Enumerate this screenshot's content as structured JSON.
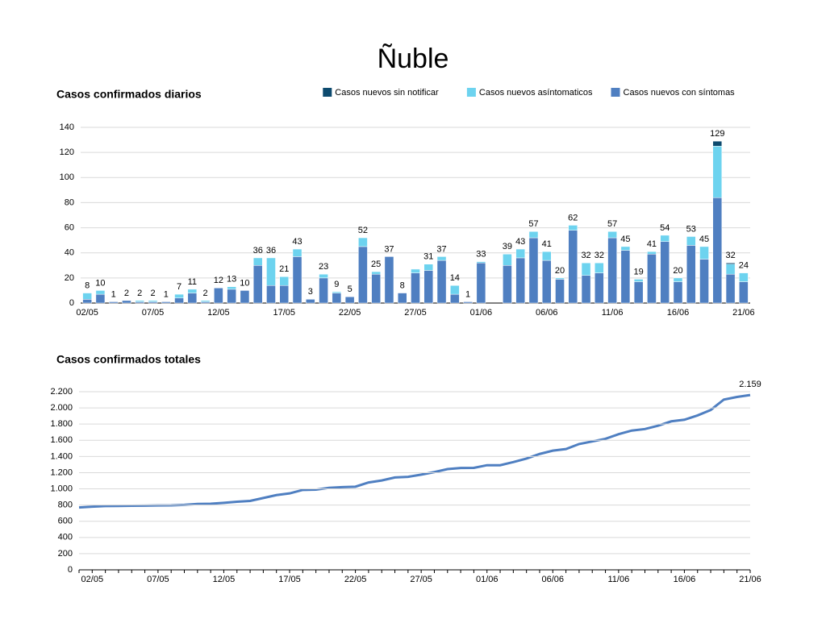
{
  "title": "Ñuble",
  "chart_data": [
    {
      "type": "stacked_bar",
      "title": "Casos confirmados diarios",
      "categories": [
        "02/05",
        null,
        null,
        null,
        null,
        "07/05",
        null,
        null,
        null,
        null,
        "12/05",
        null,
        null,
        null,
        null,
        "17/05",
        null,
        null,
        null,
        null,
        "22/05",
        null,
        null,
        null,
        null,
        "27/05",
        null,
        null,
        null,
        null,
        "01/06",
        null,
        null,
        null,
        null,
        "06/06",
        null,
        null,
        null,
        null,
        "11/06",
        null,
        null,
        null,
        null,
        "16/06",
        null,
        null,
        null,
        null,
        "21/06"
      ],
      "series": [
        {
          "name": "Casos nuevos con síntomas",
          "color": "#4f7fc1",
          "values": [
            3,
            7,
            1,
            2,
            1,
            1,
            1,
            4,
            8,
            1,
            12,
            11,
            10,
            30,
            14,
            14,
            37,
            3,
            20,
            8,
            5,
            45,
            23,
            37,
            8,
            24,
            26,
            34,
            7,
            1,
            32,
            0,
            30,
            36,
            52,
            34,
            19,
            58,
            22,
            24,
            52,
            42,
            17,
            39,
            49,
            17,
            46,
            35,
            84,
            23,
            17
          ]
        },
        {
          "name": "Casos nuevos asíntomaticos",
          "color": "#6dd3ef",
          "values": [
            5,
            3,
            0,
            0,
            1,
            1,
            0,
            3,
            3,
            1,
            0,
            2,
            0,
            6,
            22,
            7,
            6,
            0,
            3,
            1,
            0,
            7,
            2,
            0,
            0,
            3,
            5,
            3,
            7,
            0,
            1,
            0,
            9,
            7,
            5,
            7,
            1,
            4,
            10,
            8,
            5,
            3,
            2,
            2,
            5,
            3,
            7,
            10,
            41,
            8,
            7
          ]
        },
        {
          "name": "Casos nuevos sin notificar",
          "color": "#0d4a6e",
          "values": [
            0,
            0,
            0,
            0,
            0,
            0,
            0,
            0,
            0,
            0,
            0,
            0,
            0,
            0,
            0,
            0,
            0,
            0,
            0,
            0,
            0,
            0,
            0,
            0,
            0,
            0,
            0,
            0,
            0,
            0,
            0,
            0,
            0,
            0,
            0,
            0,
            0,
            0,
            0,
            0,
            0,
            0,
            0,
            0,
            0,
            0,
            0,
            0,
            4,
            1,
            0
          ]
        }
      ],
      "total_labels": [
        8,
        10,
        1,
        2,
        2,
        2,
        1,
        7,
        11,
        2,
        12,
        13,
        10,
        36,
        36,
        21,
        43,
        3,
        23,
        9,
        5,
        52,
        25,
        37,
        8,
        null,
        31,
        37,
        14,
        1,
        33,
        null,
        39,
        43,
        57,
        41,
        20,
        62,
        32,
        32,
        57,
        45,
        19,
        41,
        54,
        20,
        53,
        45,
        129,
        32,
        24
      ],
      "ylim": [
        0,
        140
      ],
      "yticks": [
        0,
        20,
        40,
        60,
        80,
        100,
        120,
        140
      ],
      "grid": true,
      "legend": "top-right"
    },
    {
      "type": "line",
      "title": "Casos confirmados totales",
      "categories": [
        null,
        "02/05",
        null,
        null,
        null,
        null,
        "07/05",
        null,
        null,
        null,
        null,
        "12/05",
        null,
        null,
        null,
        null,
        "17/05",
        null,
        null,
        null,
        null,
        "22/05",
        null,
        null,
        null,
        null,
        "27/05",
        null,
        null,
        null,
        null,
        "01/06",
        null,
        null,
        null,
        null,
        "06/06",
        null,
        null,
        null,
        null,
        "11/06",
        null,
        null,
        null,
        null,
        "16/06",
        null,
        null,
        null,
        null,
        "21/06"
      ],
      "values": [
        770,
        780,
        788,
        789,
        791,
        793,
        795,
        796,
        803,
        814,
        816,
        828,
        841,
        851,
        887,
        923,
        944,
        987,
        990,
        1013,
        1022,
        1027,
        1079,
        1104,
        1141,
        1149,
        1176,
        1207,
        1244,
        1258,
        1259,
        1292,
        1292,
        1331,
        1374,
        1431,
        1472,
        1492,
        1554,
        1586,
        1618,
        1675,
        1720,
        1739,
        1780,
        1834,
        1854,
        1907,
        1974,
        2103,
        2135,
        2159
      ],
      "value_labels": [
        null,
        null,
        null,
        null,
        null,
        null,
        null,
        null,
        null,
        null,
        null,
        null,
        null,
        null,
        null,
        null,
        null,
        null,
        null,
        null,
        null,
        null,
        null,
        null,
        null,
        null,
        null,
        null,
        null,
        null,
        null,
        null,
        null,
        null,
        null,
        null,
        null,
        null,
        null,
        null,
        null,
        null,
        null,
        null,
        null,
        null,
        null,
        null,
        null,
        null,
        null,
        "2.159"
      ],
      "color": "#4f7fc1",
      "ylim": [
        0,
        2200
      ],
      "yticks": [
        0,
        200,
        400,
        600,
        800,
        {
          "value": 1000,
          "label": "1.000"
        },
        {
          "value": 1200,
          "label": "1.200"
        },
        {
          "value": 1400,
          "label": "1.400"
        },
        {
          "value": 1600,
          "label": "1.600"
        },
        {
          "value": 1800,
          "label": "1.800"
        },
        {
          "value": 2000,
          "label": "2.000"
        },
        {
          "value": 2200,
          "label": "2.200"
        }
      ],
      "grid": true
    }
  ]
}
